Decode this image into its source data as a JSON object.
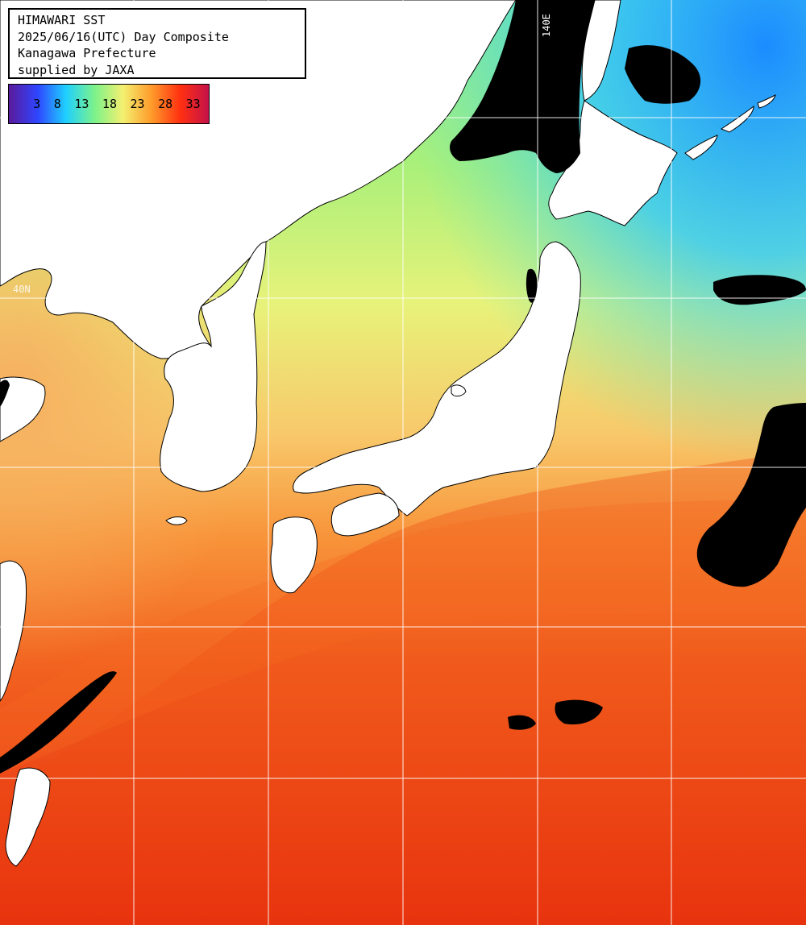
{
  "header": {
    "line1": "HIMAWARI SST",
    "line2": "2025/06/16(UTC) Day Composite",
    "line3": "Kanagawa Prefecture",
    "line4": "supplied by JAXA"
  },
  "colorbar": {
    "ticks": [
      "3",
      "8",
      "13",
      "18",
      "23",
      "28",
      "33"
    ],
    "gradient_colors": [
      "#5a1a9a",
      "#2f45ff",
      "#1fd0ff",
      "#7cf28a",
      "#f4f070",
      "#ff9a2a",
      "#ff3010",
      "#c4124a"
    ]
  },
  "grid_labels": {
    "longitude": "140E",
    "latitude": "40N"
  },
  "colors": {
    "land": "#ffffff",
    "no_data": "#000000",
    "grid": "#ffffff"
  }
}
